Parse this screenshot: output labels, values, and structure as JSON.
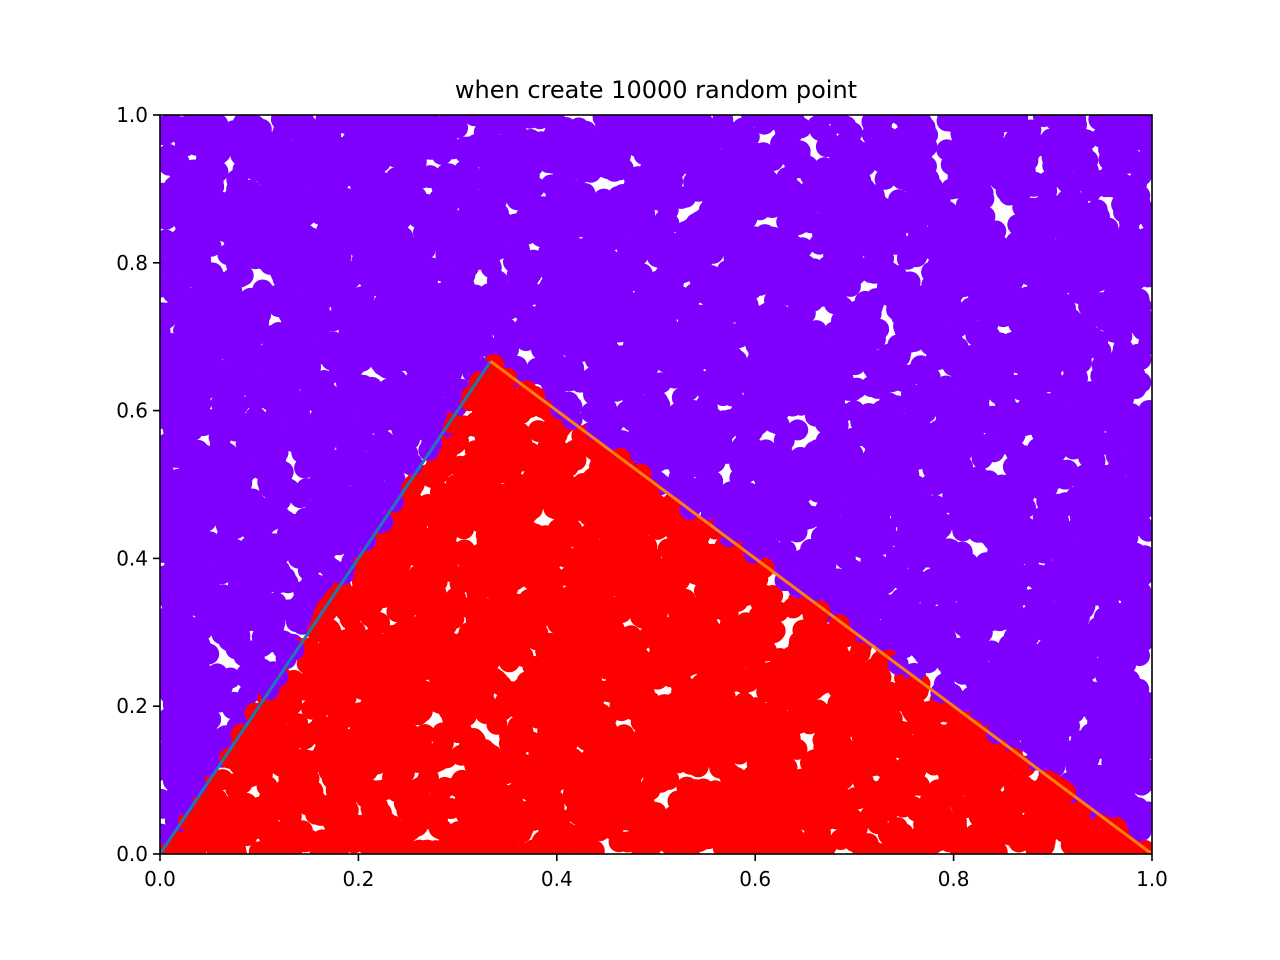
{
  "chart_data": {
    "type": "scatter",
    "title": "when create 10000 random point",
    "xlabel": "",
    "ylabel": "",
    "xlim": [
      0.0,
      1.0
    ],
    "ylim": [
      0.0,
      1.0
    ],
    "xticks": [
      "0.0",
      "0.2",
      "0.4",
      "0.6",
      "0.8",
      "1.0"
    ],
    "yticks": [
      "0.0",
      "0.2",
      "0.4",
      "0.6",
      "0.8",
      "1.0"
    ],
    "grid": false,
    "point_count": 10000,
    "points_note": "uniform random points in [0,1]x[0,1]; colored by whether they fall under the triangle",
    "series": [
      {
        "kind": "scatter",
        "region": "outside-triangle",
        "color": "#8000ff"
      },
      {
        "kind": "scatter",
        "region": "inside-triangle",
        "color": "#ff0000"
      },
      {
        "kind": "line",
        "x": [
          0.0,
          0.3333
        ],
        "y": [
          0.0,
          0.6667
        ],
        "color": "#1f77b4"
      },
      {
        "kind": "line",
        "x": [
          0.3333,
          1.0
        ],
        "y": [
          0.6667,
          0.0
        ],
        "color": "#ff7f0e"
      }
    ]
  }
}
